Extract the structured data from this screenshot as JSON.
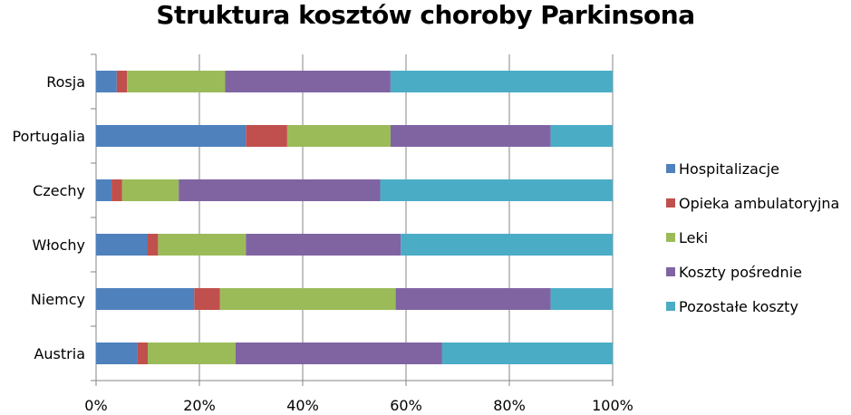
{
  "chart_data": {
    "type": "bar",
    "orientation": "horizontal",
    "stacked": "percent",
    "title": "Struktura kosztów choroby Parkinsona",
    "categories": [
      "Rosja",
      "Portugalia",
      "Czechy",
      "Włochy",
      "Niemcy",
      "Austria"
    ],
    "series": [
      {
        "name": "Hospitalizacje",
        "color": "#4F81BD",
        "values": [
          4,
          29,
          3,
          10,
          19,
          8
        ]
      },
      {
        "name": "Opieka ambulatoryjna",
        "color": "#C0504D",
        "values": [
          2,
          8,
          2,
          2,
          5,
          2
        ]
      },
      {
        "name": "Leki",
        "color": "#9BBB59",
        "values": [
          19,
          20,
          11,
          17,
          34,
          17
        ]
      },
      {
        "name": "Koszty pośrednie",
        "color": "#8064A2",
        "values": [
          32,
          31,
          39,
          30,
          30,
          40
        ]
      },
      {
        "name": "Pozostałe koszty",
        "color": "#4BACC6",
        "values": [
          43,
          12,
          45,
          41,
          12,
          33
        ]
      }
    ],
    "x_ticks": [
      "0%",
      "20%",
      "40%",
      "60%",
      "80%",
      "100%"
    ],
    "xlim": [
      0,
      100
    ],
    "legend_position": "right",
    "grid": {
      "x": true,
      "y": false
    }
  }
}
